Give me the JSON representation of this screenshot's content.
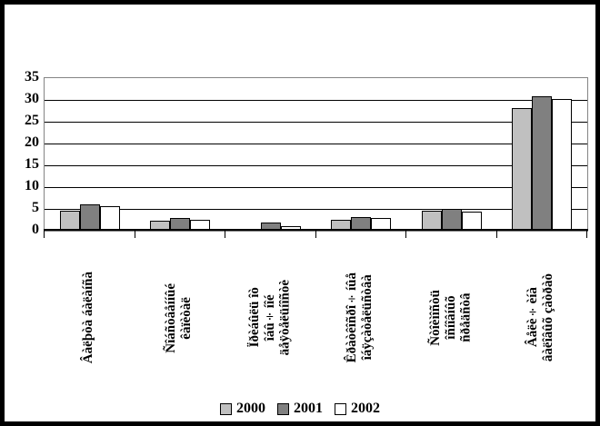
{
  "chart_data": {
    "type": "bar",
    "title": "",
    "grid": true,
    "legend_position": "bottom",
    "background": "#ffffff",
    "plot_border_color": "#848484",
    "gridline_color": "#000000",
    "y_axis": {
      "min": 0,
      "max": 35,
      "step": 5,
      "ticks": [
        0,
        5,
        10,
        15,
        20,
        25,
        30,
        35
      ]
    },
    "categories": [
      {
        "lines": [
          "Âàëþòà áàëàíñà"
        ]
      },
      {
        "lines": [
          "Ñîáñòâåííûé",
          "êàïèòàë"
        ]
      },
      {
        "lines": [
          "Ïðèáûëü îò",
          "îáû÷íîé",
          "äåÿòåëüíîñòè"
        ]
      },
      {
        "lines": [
          "Êðàòêîñðî÷íûå",
          "îáÿçàòåëüñòâà"
        ]
      },
      {
        "lines": [
          "Ñòîèìîñòü",
          "îñíîâíûõ",
          "ñðåäñòâ"
        ]
      },
      {
        "lines": [
          "Âåëè÷èíà",
          "âàëîâûõ çàòðàò"
        ]
      }
    ],
    "series": [
      {
        "name": "2000",
        "color": "#c0c0c0",
        "values": [
          4.5,
          2.2,
          0.5,
          2.4,
          4.6,
          28.1
        ]
      },
      {
        "name": "2001",
        "color": "#808080",
        "values": [
          6.1,
          3.0,
          1.9,
          3.1,
          4.9,
          30.8
        ]
      },
      {
        "name": "2002",
        "color": "#ffffff",
        "values": [
          5.7,
          2.6,
          1.0,
          2.9,
          4.4,
          30.2
        ]
      }
    ]
  }
}
